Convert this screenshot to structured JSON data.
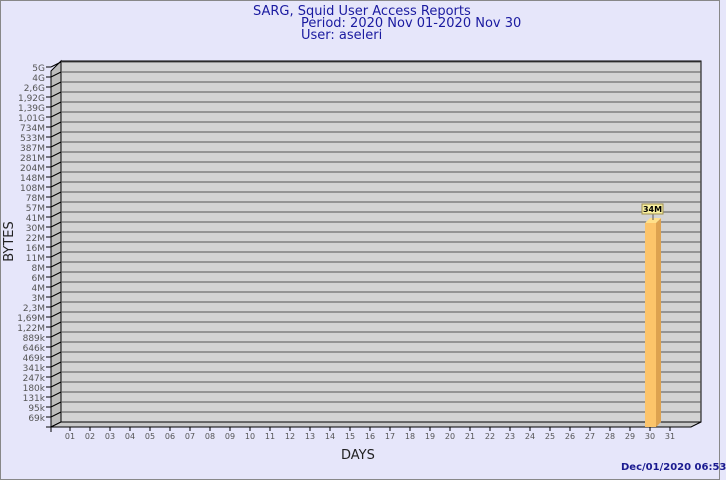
{
  "chart_data": {
    "type": "bar",
    "title": "SARG, Squid User Access Reports",
    "period": "Period: 2020 Nov 01-2020 Nov 30",
    "user": "User: aseleri",
    "xlabel": "DAYS",
    "ylabel": "BYTES",
    "yscale": "log",
    "yticks": [
      "5G",
      "4G",
      "2,6G",
      "1,92G",
      "1,39G",
      "1,01G",
      "734M",
      "533M",
      "387M",
      "281M",
      "204M",
      "148M",
      "108M",
      "78M",
      "57M",
      "41M",
      "30M",
      "22M",
      "16M",
      "11M",
      "8M",
      "6M",
      "4M",
      "3M",
      "2,3M",
      "1,69M",
      "1,22M",
      "889k",
      "646k",
      "469k",
      "341k",
      "247k",
      "180k",
      "131k",
      "95k",
      "69k"
    ],
    "categories": [
      "01",
      "02",
      "03",
      "04",
      "05",
      "06",
      "07",
      "08",
      "09",
      "10",
      "11",
      "12",
      "13",
      "14",
      "15",
      "16",
      "17",
      "18",
      "19",
      "20",
      "21",
      "22",
      "23",
      "24",
      "25",
      "26",
      "27",
      "28",
      "29",
      "30",
      "31"
    ],
    "values": [
      {
        "day": "30",
        "value": "34M"
      }
    ],
    "bar_color": "#fcc46a",
    "grid": true
  },
  "timestamp": "Dec/01/2020 06:53"
}
